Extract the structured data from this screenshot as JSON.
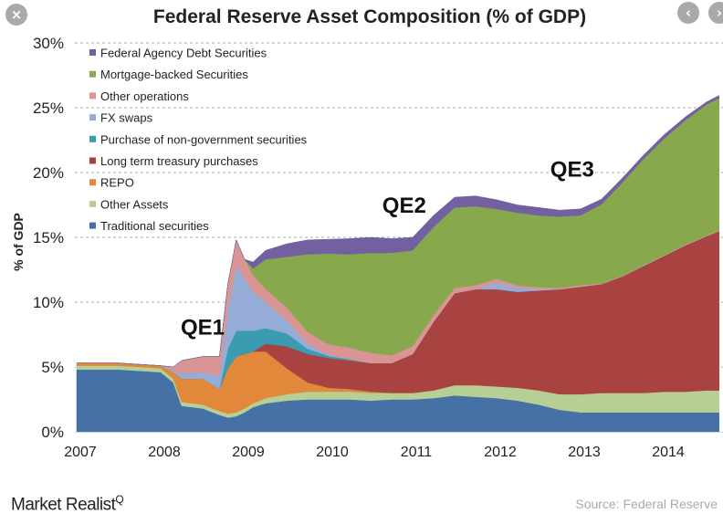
{
  "ui": {
    "close_icon": "×",
    "prev_icon": "‹",
    "next_icon": "›"
  },
  "brand": {
    "name": "Market Realist",
    "mark": "Q"
  },
  "source": "Source: Federal Reserve",
  "chart_data": {
    "type": "area",
    "stacked": true,
    "title": "Federal Reserve Asset Composition (% of GDP)",
    "xlabel": "",
    "ylabel": "% of GDP",
    "ylim": [
      0,
      30
    ],
    "xlim": [
      2007,
      2014.7
    ],
    "yticks": [
      "0%",
      "5%",
      "10%",
      "15%",
      "20%",
      "25%",
      "30%"
    ],
    "ytick_values": [
      0,
      5,
      10,
      15,
      20,
      25,
      30
    ],
    "xticks": [
      "2007",
      "2008",
      "2009",
      "2010",
      "2011",
      "2012",
      "2013",
      "2014"
    ],
    "xtick_values": [
      2007,
      2008,
      2009,
      2010,
      2011,
      2012,
      2013,
      2014
    ],
    "grid": "horizontal dashed",
    "legend_position": "top-left",
    "annotations": [
      {
        "text": "QE1",
        "x": 2008.5,
        "y": 7.5
      },
      {
        "text": "QE2",
        "x": 2010.9,
        "y": 16.9
      },
      {
        "text": "QE3",
        "x": 2012.9,
        "y": 19.7
      }
    ],
    "x": [
      2007.0,
      2007.5,
      2008.0,
      2008.15,
      2008.25,
      2008.5,
      2008.7,
      2008.8,
      2008.9,
      2009.0,
      2009.1,
      2009.25,
      2009.5,
      2009.75,
      2010.0,
      2010.25,
      2010.5,
      2010.75,
      2011.0,
      2011.25,
      2011.5,
      2011.75,
      2012.0,
      2012.25,
      2012.5,
      2012.75,
      2013.0,
      2013.25,
      2013.5,
      2013.75,
      2014.0,
      2014.25,
      2014.5,
      2014.65
    ],
    "series": [
      {
        "name": "Traditional securities",
        "color": "#4571a7",
        "values": [
          4.8,
          4.8,
          4.6,
          3.8,
          2.0,
          1.8,
          1.3,
          1.1,
          1.2,
          1.5,
          1.9,
          2.2,
          2.4,
          2.5,
          2.5,
          2.5,
          2.4,
          2.5,
          2.5,
          2.6,
          2.8,
          2.7,
          2.6,
          2.4,
          2.1,
          1.7,
          1.5,
          1.5,
          1.5,
          1.5,
          1.5,
          1.5,
          1.5,
          1.5
        ]
      },
      {
        "name": "Other Assets",
        "color": "#b5cf94",
        "values": [
          0.3,
          0.3,
          0.3,
          0.3,
          0.3,
          0.3,
          0.3,
          0.3,
          0.3,
          0.3,
          0.3,
          0.4,
          0.5,
          0.6,
          0.6,
          0.6,
          0.6,
          0.5,
          0.5,
          0.6,
          0.8,
          0.9,
          0.9,
          1.0,
          1.1,
          1.2,
          1.4,
          1.5,
          1.5,
          1.5,
          1.6,
          1.6,
          1.7,
          1.7
        ]
      },
      {
        "name": "REPO",
        "color": "#e2883a",
        "values": [
          0.2,
          0.2,
          0.2,
          0.5,
          1.8,
          2.0,
          1.7,
          3.5,
          4.3,
          4.2,
          4.0,
          3.6,
          2.0,
          0.7,
          0.3,
          0.2,
          0.1,
          0,
          0,
          0,
          0,
          0,
          0,
          0,
          0,
          0,
          0,
          0,
          0,
          0,
          0,
          0,
          0,
          0
        ]
      },
      {
        "name": "Long term treasury purchases",
        "color": "#a84341",
        "values": [
          0,
          0,
          0,
          0,
          0,
          0,
          0,
          0,
          0,
          0,
          0,
          0.6,
          1.7,
          2.2,
          2.3,
          2.2,
          2.2,
          2.3,
          3.0,
          5.3,
          7.1,
          7.4,
          7.5,
          7.4,
          7.7,
          8.1,
          8.3,
          8.4,
          9.0,
          9.8,
          10.5,
          11.3,
          11.9,
          12.3
        ]
      },
      {
        "name": "Purchase of non-government securities",
        "color": "#3b9bb0",
        "values": [
          0,
          0,
          0,
          0,
          0,
          0,
          0,
          1.5,
          2.0,
          1.8,
          1.6,
          1.2,
          1.0,
          0.4,
          0.15,
          0.1,
          0,
          0,
          0,
          0,
          0,
          0,
          0,
          0,
          0,
          0,
          0,
          0,
          0,
          0,
          0,
          0,
          0,
          0
        ]
      },
      {
        "name": "FX swaps",
        "color": "#94acd6",
        "values": [
          0,
          0,
          0,
          0.1,
          0.4,
          0.5,
          1.0,
          3.0,
          5.0,
          4.0,
          3.0,
          2.0,
          1.0,
          0.4,
          0.1,
          0,
          0,
          0,
          0,
          0,
          0,
          0,
          0.5,
          0.3,
          0.1,
          0,
          0,
          0,
          0,
          0,
          0,
          0,
          0,
          0
        ]
      },
      {
        "name": "Other operations",
        "color": "#d99594",
        "values": [
          0,
          0,
          0,
          0.3,
          1.0,
          1.2,
          1.5,
          2.0,
          2.0,
          1.5,
          1.3,
          1.0,
          1.0,
          0.9,
          0.8,
          0.9,
          0.8,
          0.6,
          0.6,
          0.5,
          0.4,
          0.3,
          0.3,
          0.2,
          0.15,
          0.1,
          0.1,
          0.05,
          0.05,
          0.05,
          0.05,
          0.05,
          0.05,
          0.05
        ]
      },
      {
        "name": "Mortgage-backed Securities",
        "color": "#88a84e",
        "values": [
          0,
          0,
          0,
          0,
          0,
          0,
          0,
          0,
          0,
          0,
          0.5,
          2.3,
          3.9,
          6.0,
          7.0,
          7.2,
          7.7,
          7.9,
          7.4,
          6.8,
          6.2,
          6.1,
          5.4,
          5.6,
          5.55,
          5.5,
          5.4,
          6.1,
          7.2,
          8.2,
          9.0,
          9.6,
          10.1,
          10.2
        ]
      },
      {
        "name": "Federal Agency Debt Securities",
        "color": "#7260a0",
        "values": [
          0,
          0,
          0,
          0,
          0,
          0,
          0,
          0,
          0,
          0,
          0.5,
          0.7,
          1.0,
          1.1,
          1.1,
          1.2,
          1.2,
          1.1,
          1.0,
          0.9,
          0.8,
          0.8,
          0.7,
          0.6,
          0.6,
          0.5,
          0.5,
          0.4,
          0.35,
          0.3,
          0.3,
          0.25,
          0.2,
          0.2
        ]
      }
    ]
  }
}
